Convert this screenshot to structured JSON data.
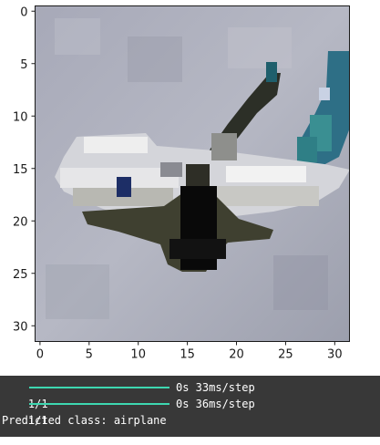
{
  "chart": {
    "x_ticks": [
      "0",
      "5",
      "10",
      "15",
      "20",
      "25",
      "30"
    ],
    "y_ticks": [
      "0",
      "5",
      "10",
      "15",
      "20",
      "25",
      "30"
    ],
    "xlim": [
      -0.5,
      31.5
    ],
    "ylim": [
      31.5,
      -0.5
    ],
    "image_size": [
      32,
      32
    ]
  },
  "console": {
    "lines": [
      {
        "count": "1/1",
        "progress": 1.0,
        "time": "0s 33ms/step"
      },
      {
        "count": "1/1",
        "progress": 1.0,
        "time": "0s 36ms/step"
      }
    ],
    "prediction": "Predicted class: airplane"
  },
  "colors": {
    "sky": "#a9acb9",
    "body": "#d9d9d9",
    "dark": "#2d2f24",
    "teal": "#2f7f86",
    "progress": "#3dd7b0"
  }
}
